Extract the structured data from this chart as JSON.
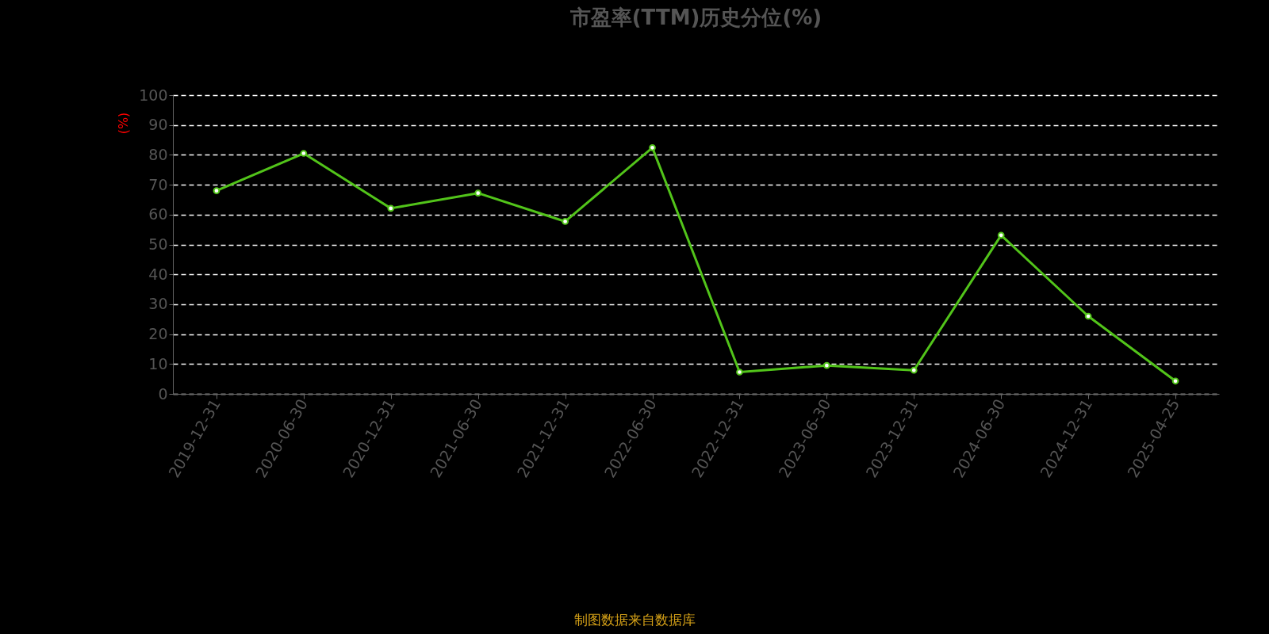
{
  "chart_data": {
    "type": "line",
    "title": "市盈率(TTM)历史分位(%)",
    "ylabel": "(%)",
    "categories": [
      "2019-12-31",
      "2020-06-30",
      "2020-12-31",
      "2021-06-30",
      "2021-12-31",
      "2022-06-30",
      "2022-12-31",
      "2023-06-30",
      "2023-12-31",
      "2024-06-30",
      "2024-12-31",
      "2025-04-25"
    ],
    "series": [
      {
        "color": "#52c41a",
        "values": [
          68.0,
          80.5,
          62.1,
          67.2,
          57.7,
          82.4,
          7.3,
          9.5,
          7.9,
          53.1,
          26.0,
          4.3
        ]
      }
    ],
    "ylim": [
      0,
      100
    ],
    "yticks": [
      0,
      10,
      20,
      30,
      40,
      50,
      60,
      70,
      80,
      90,
      100
    ],
    "grid": "y",
    "marker": "circle",
    "line_style": "solid",
    "annotations": [
      "制图数据来自数据库"
    ]
  }
}
